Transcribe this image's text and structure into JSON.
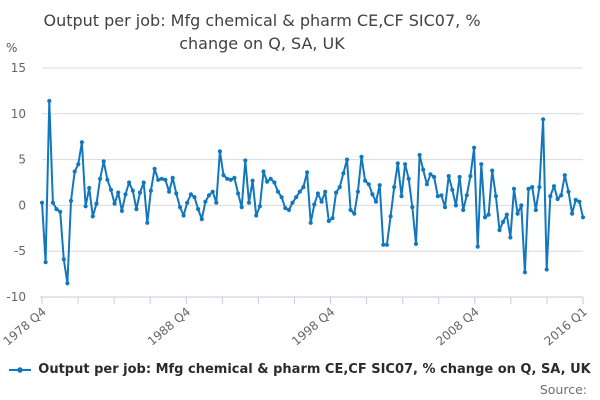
{
  "title": {
    "line1": "Output per job: Mfg chemical & pharm CE,CF SIC07, %",
    "line2": "change on Q, SA, UK",
    "full": "Output per job: Mfg chemical & pharm CE,CF SIC07, % change on Q, SA, UK"
  },
  "legend": {
    "label": "Output per job: Mfg chemical & pharm CE,CF SIC07, % change on Q, SA, UK",
    "marker": "line-dot"
  },
  "source": {
    "label": "Source:"
  },
  "colors": {
    "line": "#1277bd",
    "grid": "#d9d9d9",
    "axis": "#c0cede",
    "tick_text": "#666666",
    "title_text": "#414141",
    "legend_text": "#2b2b2b",
    "source_text": "#6f6f6f"
  },
  "chart_data": {
    "type": "line",
    "title": "Output per job: Mfg chemical & pharm CE,CF SIC07, % change on Q, SA, UK",
    "xlabel": "",
    "ylabel": "%",
    "ylim": [
      -10,
      15
    ],
    "yticks": [
      15,
      10,
      5,
      0,
      -5,
      -10
    ],
    "grid": "horizontal",
    "legend_position": "bottom-center",
    "x_start": "1978 Q4",
    "x_end": "2016 Q1",
    "x_frequency": "quarterly",
    "n_points": 150,
    "x_ticks": {
      "count": 16,
      "labeled": [
        {
          "index": 0,
          "label": "1978 Q4"
        },
        {
          "index": 4,
          "label": "1988 Q4"
        },
        {
          "index": 8,
          "label": "1998 Q4"
        },
        {
          "index": 12,
          "label": "2008 Q4"
        },
        {
          "index": 15,
          "label": "2016 Q1"
        }
      ]
    },
    "series": [
      {
        "name": "Output per job: Mfg chemical & pharm CE,CF SIC07, % change on Q, SA, UK",
        "color": "#1277bd",
        "marker": "dot",
        "values": [
          0.3,
          -6.2,
          11.4,
          0.3,
          -0.4,
          -0.7,
          -5.9,
          -8.5,
          0.5,
          3.7,
          4.5,
          6.9,
          -0.1,
          1.9,
          -1.2,
          0.2,
          2.9,
          4.8,
          2.8,
          1.7,
          0.2,
          1.4,
          -0.6,
          1.2,
          2.5,
          1.6,
          -0.4,
          1.4,
          2.5,
          -1.9,
          1.6,
          4.0,
          2.8,
          2.9,
          2.8,
          1.5,
          3.0,
          1.3,
          -0.2,
          -1.1,
          0.3,
          1.2,
          0.9,
          -0.4,
          -1.5,
          0.4,
          1.1,
          1.5,
          0.3,
          5.9,
          3.3,
          2.9,
          2.8,
          3.0,
          1.3,
          -0.2,
          4.9,
          0.3,
          2.7,
          -1.1,
          -0.1,
          3.7,
          2.6,
          2.9,
          2.5,
          1.5,
          0.9,
          -0.3,
          -0.5,
          0.3,
          0.9,
          1.5,
          2.0,
          3.6,
          -1.9,
          0.1,
          1.3,
          0.4,
          1.5,
          -1.7,
          -1.4,
          1.4,
          2.0,
          3.5,
          5.0,
          -0.5,
          -0.9,
          1.5,
          5.3,
          2.7,
          2.3,
          1.2,
          0.4,
          2.2,
          -4.3,
          -4.3,
          -1.2,
          2.0,
          4.6,
          1.0,
          4.5,
          2.9,
          -0.2,
          -4.2,
          5.5,
          3.9,
          2.3,
          3.4,
          3.1,
          1.0,
          1.1,
          -0.2,
          3.2,
          1.7,
          0.0,
          3.1,
          -0.5,
          1.1,
          3.2,
          6.3,
          -4.5,
          4.5,
          -1.3,
          -1.0,
          3.8,
          1.0,
          -2.7,
          -1.8,
          -1.0,
          -3.5,
          1.8,
          -0.9,
          0.0,
          -7.3,
          1.8,
          2.0,
          -0.5,
          2.0,
          9.4,
          -7.0,
          1.0,
          2.1,
          0.7,
          1.1,
          3.3,
          1.5,
          -0.9,
          0.6,
          0.4,
          -1.3
        ]
      }
    ]
  }
}
